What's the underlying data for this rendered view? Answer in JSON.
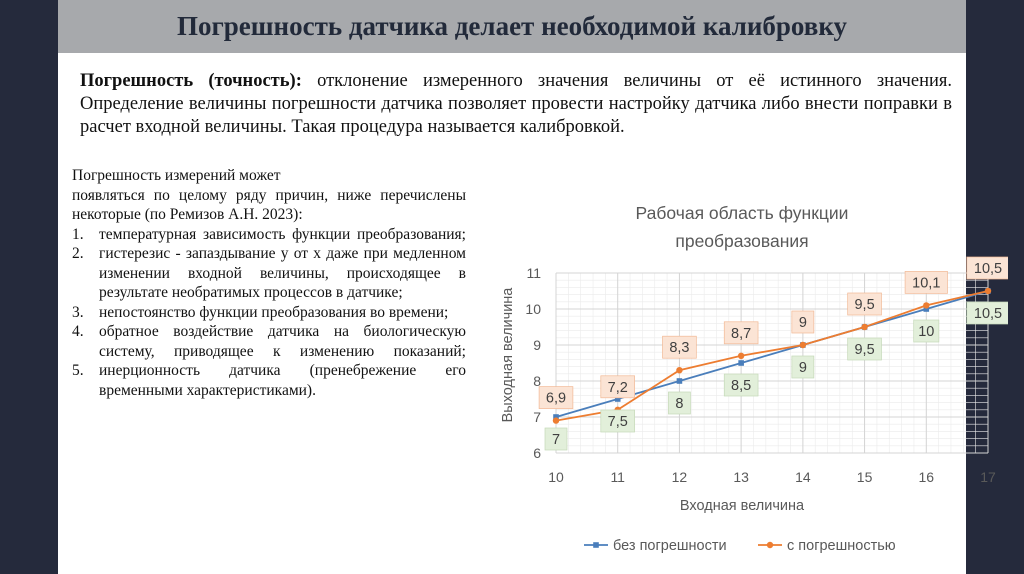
{
  "slide": {
    "title": "Погрешность датчика делает необходимой калибровку",
    "definition": {
      "term": "Погрешность (точность):",
      "text": " отклонение измеренного значения величины от её истинного значения. Определение величины погрешности датчика позволяет провести настройку датчика либо внести поправки в расчет входной величины. Такая процедура называется калибровкой."
    },
    "causes": {
      "intro_line1": "Погрешность измерений может",
      "intro_rest": "появляться по целому ряду причин, ниже перечислены некоторые (по Ремизов А.Н. 2023):",
      "items": [
        {
          "num": "1.",
          "text": "температурная зависимость функции преобразования;"
        },
        {
          "num": "2.",
          "text": "гистерезис - запаздывание y от x даже при медленном изменении входной величины, происходящее в результате необратимых процессов в датчике;"
        },
        {
          "num": "3.",
          "text": "непостоянство функции преобразования во времени;"
        },
        {
          "num": "4.",
          "text": "обратное воздействие датчика на биологическую систему, приводящее к изменению показаний;"
        },
        {
          "num": "5.",
          "text": "инерционность датчика (пренебрежение его временными характеристиками)."
        }
      ]
    },
    "colors": {
      "side_bars": "#252a3c",
      "title_band": "#a7a9ac",
      "series_ideal": "#4a7ebb",
      "series_error": "#ed7d31",
      "label_green_bg": "#e2efda",
      "label_orange_bg": "#fbe4d5"
    }
  },
  "chart_data": {
    "type": "line",
    "title_lines": [
      "Рабочая область функции",
      "преобразования"
    ],
    "xlabel": "Входная величина",
    "ylabel": "Выходная величина",
    "x": [
      10,
      11,
      12,
      13,
      14,
      15,
      16,
      17
    ],
    "xlim": [
      10,
      17
    ],
    "ylim": [
      6,
      11
    ],
    "y_ticks": [
      6,
      7,
      8,
      9,
      10,
      11
    ],
    "grid": true,
    "legend_position": "bottom",
    "series": [
      {
        "name": "без погрешности",
        "values": [
          7,
          7.5,
          8,
          8.5,
          9,
          9.5,
          10,
          10.5
        ],
        "labels": [
          "7",
          "7,5",
          "8",
          "8,5",
          "9",
          "9,5",
          "10",
          "10,5"
        ],
        "label_position": "below",
        "marker": "square"
      },
      {
        "name": "с погрешностью",
        "values": [
          6.9,
          7.2,
          8.3,
          8.7,
          9,
          9.5,
          10.1,
          10.5
        ],
        "labels": [
          "6,9",
          "7,2",
          "8,3",
          "8,7",
          "9",
          "9,5",
          "10,1",
          "10,5"
        ],
        "label_position": "above",
        "marker": "circle"
      }
    ]
  }
}
